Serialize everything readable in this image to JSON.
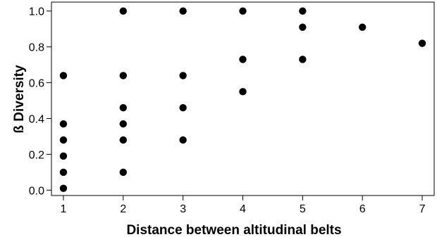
{
  "chart_data": {
    "type": "scatter",
    "xlabel": "Distance between altitudinal belts",
    "ylabel": "ß  Diversity",
    "xlim": [
      0.8,
      7.2
    ],
    "ylim": [
      -0.03,
      1.05
    ],
    "x_ticks": [
      1,
      2,
      3,
      4,
      5,
      6,
      7
    ],
    "y_ticks": [
      0.0,
      0.2,
      0.4,
      0.6,
      0.8,
      1.0
    ],
    "x_tick_labels": [
      "1",
      "2",
      "3",
      "4",
      "5",
      "6",
      "7"
    ],
    "y_tick_labels": [
      "0.0",
      "0.2",
      "0.4",
      "0.6",
      "0.8",
      "1.0"
    ],
    "grid": false,
    "legend": "none",
    "marker_color": "#000000",
    "series": [
      {
        "points": [
          {
            "x": 1,
            "y": 0.64
          },
          {
            "x": 1,
            "y": 0.37
          },
          {
            "x": 1,
            "y": 0.28
          },
          {
            "x": 1,
            "y": 0.19
          },
          {
            "x": 1,
            "y": 0.1
          },
          {
            "x": 1,
            "y": 0.01
          },
          {
            "x": 2,
            "y": 1.0
          },
          {
            "x": 2,
            "y": 0.64
          },
          {
            "x": 2,
            "y": 0.46
          },
          {
            "x": 2,
            "y": 0.37
          },
          {
            "x": 2,
            "y": 0.28
          },
          {
            "x": 2,
            "y": 0.1
          },
          {
            "x": 3,
            "y": 1.0
          },
          {
            "x": 3,
            "y": 0.64
          },
          {
            "x": 3,
            "y": 0.46
          },
          {
            "x": 3,
            "y": 0.28
          },
          {
            "x": 4,
            "y": 1.0
          },
          {
            "x": 4,
            "y": 0.73
          },
          {
            "x": 4,
            "y": 0.55
          },
          {
            "x": 5,
            "y": 1.0
          },
          {
            "x": 5,
            "y": 0.91
          },
          {
            "x": 5,
            "y": 0.73
          },
          {
            "x": 6,
            "y": 0.91
          },
          {
            "x": 7,
            "y": 0.82
          }
        ]
      }
    ]
  }
}
